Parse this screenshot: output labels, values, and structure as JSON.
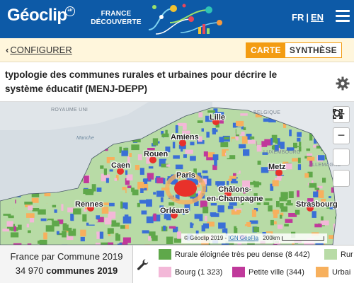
{
  "header": {
    "logo": "Géoclip",
    "logo_badge": "air",
    "subtitle_line1": "FRANCE",
    "subtitle_line2": "DÉCOUVERTE",
    "lang_fr": "FR",
    "lang_sep": "|",
    "lang_en": "EN",
    "menu_icon": "hamburger-menu-icon",
    "colors": {
      "bar": "#0d5aa7"
    }
  },
  "config_bar": {
    "back_label": "CONFIGURER",
    "back_icon": "chevron-left-icon",
    "tabs": [
      {
        "label": "CARTE",
        "active": true
      },
      {
        "label": "SYNTHÈSE",
        "active": false
      }
    ],
    "accent": "#f39c12"
  },
  "title": {
    "text": "typologie des communes rurales et urbaines pour décrire le système éducatif (MENJ-DEPP)",
    "settings_icon": "gear-icon"
  },
  "map": {
    "cities": [
      "Lille",
      "Amiens",
      "Rouen",
      "Caen",
      "Paris",
      "Metz",
      "Châlons-en-Champagne",
      "Strasbourg",
      "Rennes",
      "Orléans"
    ],
    "city_lines": {
      "chalons_1": "Châlons-",
      "chalons_2": "en-Champagne"
    },
    "regions": [
      "ROYAUME UNI",
      "BELGIQUE",
      "LUXEMBOURG",
      "ALLEMAGNE"
    ],
    "seas": [
      "Manche"
    ],
    "controls": {
      "zoom_in": "+",
      "zoom_out": "−",
      "icons": [
        "zoom-in-icon",
        "zoom-out-icon",
        "search-icon",
        "fullscreen-icon"
      ]
    },
    "attribution": {
      "prefix": "© Géoclip 2019 - ",
      "link": "IGN GéoFla",
      "scale": "200km"
    },
    "colors": {
      "water": "#d6dde3",
      "paris_core": "#e8312a",
      "rural_far": "#5fa84a",
      "rural": "#b8dba6",
      "bourg": "#f3b8d8",
      "petite_ville": "#c0399b",
      "urbain": "#f7b05d",
      "banlieue": "#3a6fd6"
    }
  },
  "bottom": {
    "scope": "France par Commune 2019",
    "count": "34 970",
    "unit": "communes 2019",
    "tools_icon": "wrench-icon",
    "legend": [
      {
        "label": "Rurale éloignée très peu dense (8 442)",
        "color": "#5fa84a"
      },
      {
        "label": "Rur",
        "color": "#b8dba6"
      },
      {
        "label": "Bourg (1 323)",
        "color": "#f3b8d8"
      },
      {
        "label": "Petite ville (344)",
        "color": "#c0399b"
      },
      {
        "label": "Urbai",
        "color": "#f7b05d"
      }
    ]
  }
}
